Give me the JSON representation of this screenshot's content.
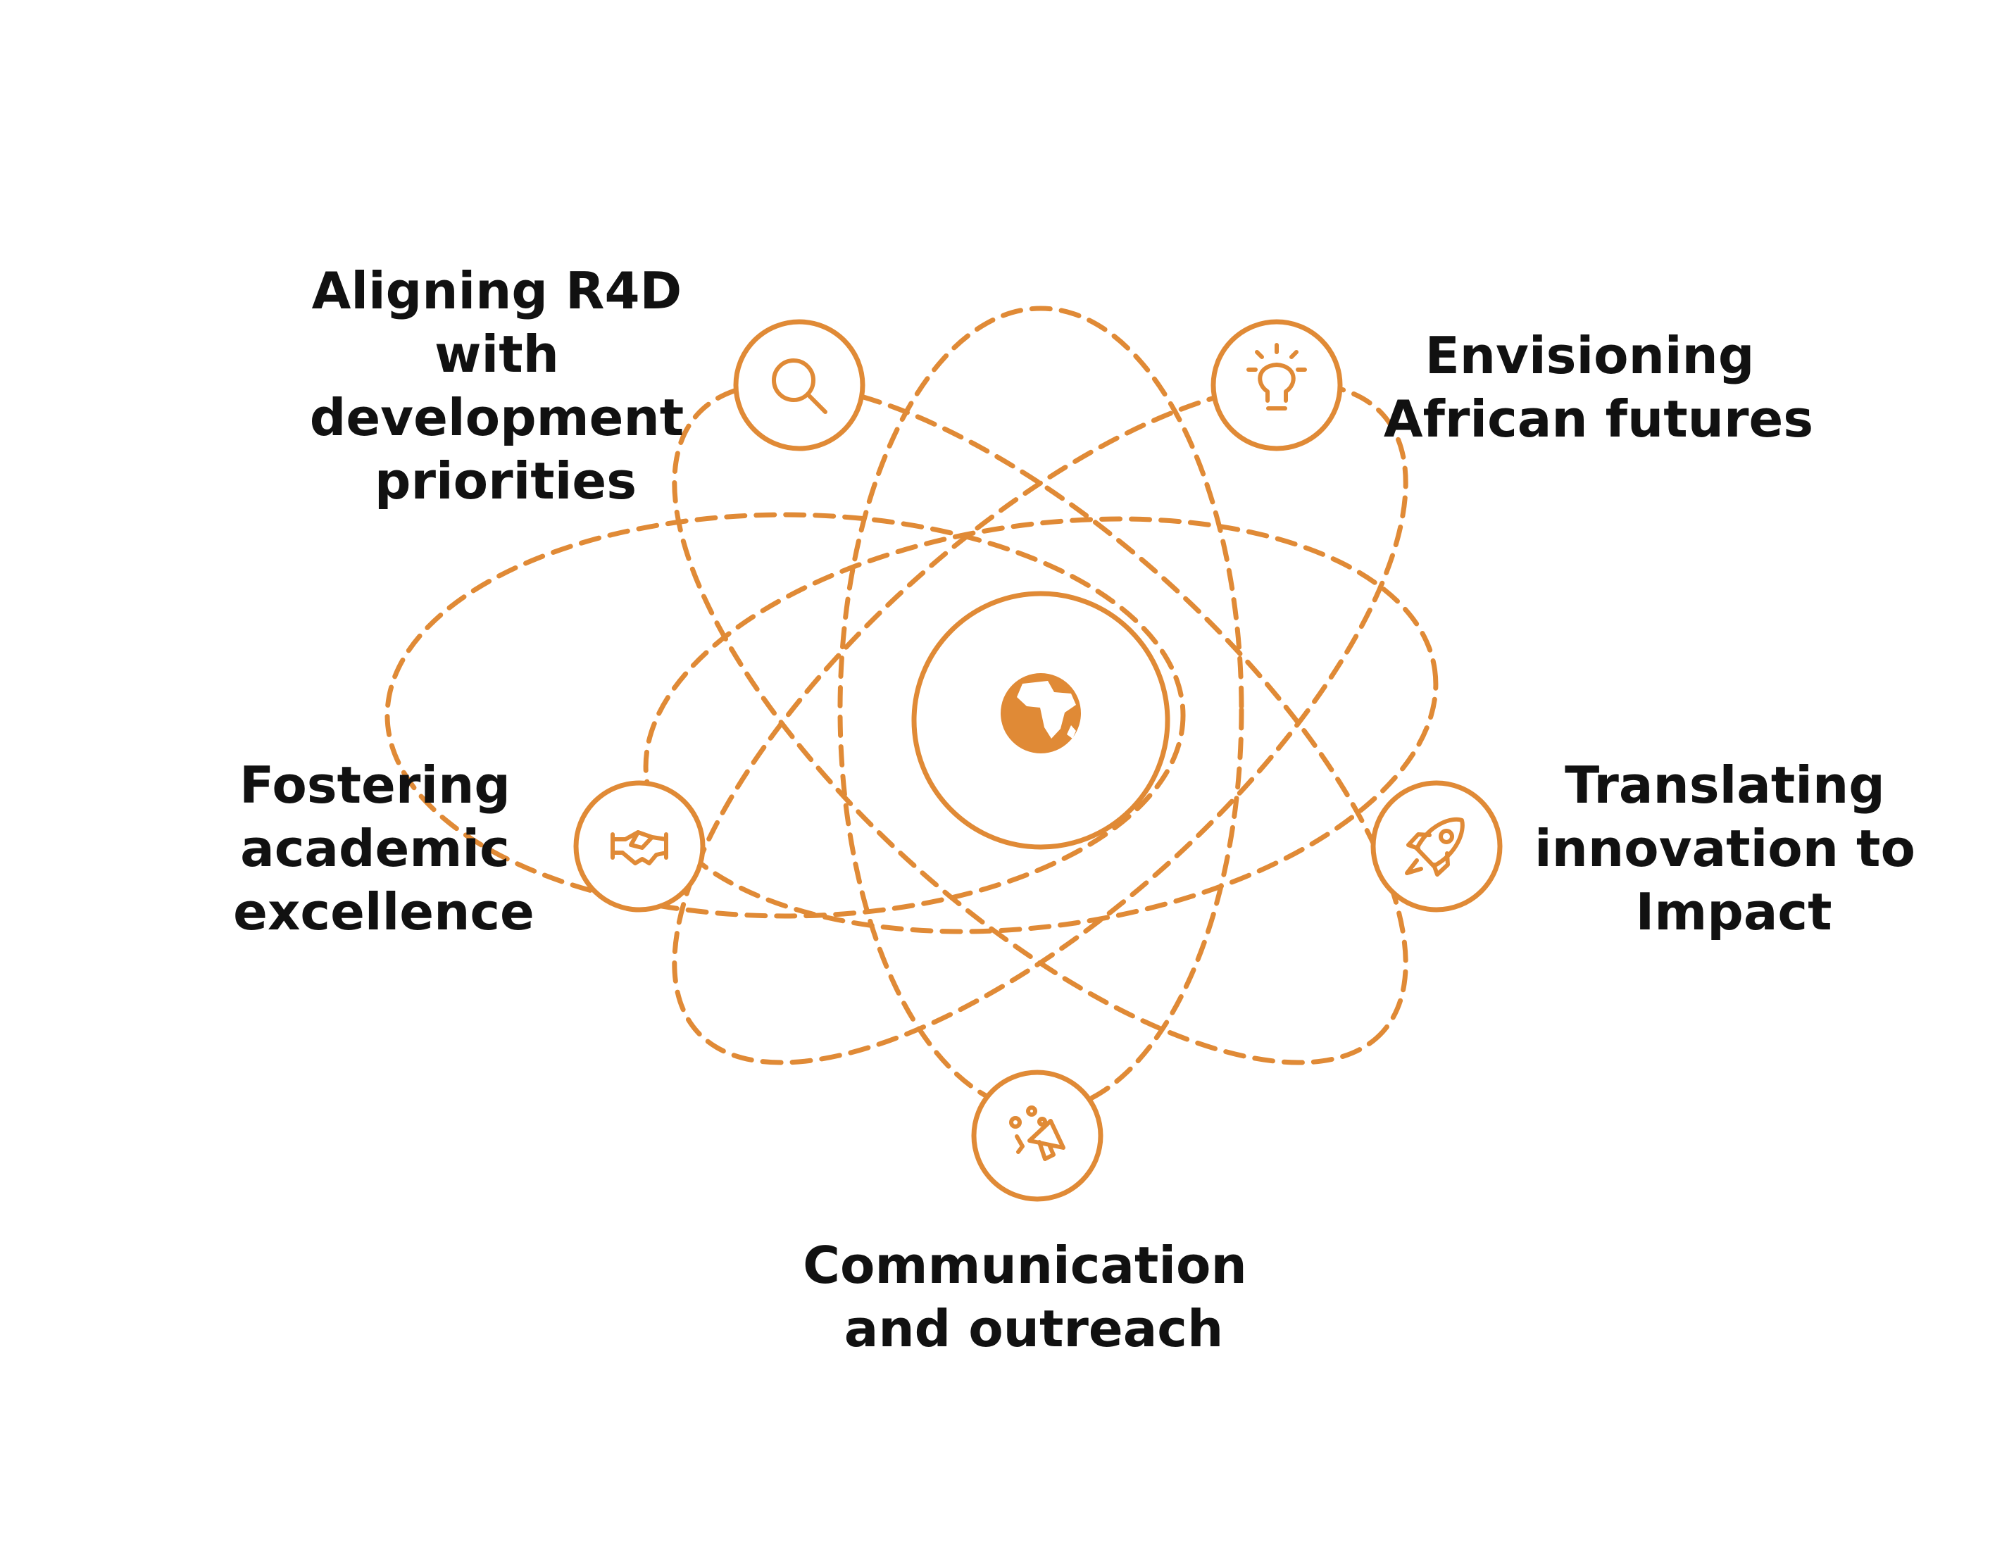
{
  "colors": {
    "accent": "#e08a36",
    "text": "#111111",
    "background": "#ffffff"
  },
  "center": {
    "icon": "africa-globe-icon"
  },
  "nodes": [
    {
      "key": "aligning",
      "icon": "magnifier-icon",
      "label_lines": [
        "Aligning R4D",
        "with",
        "development",
        "priorities"
      ]
    },
    {
      "key": "envisioning",
      "icon": "lightbulb-icon",
      "label_lines": [
        "Envisioning",
        "African futures"
      ]
    },
    {
      "key": "fostering",
      "icon": "handshake-icon",
      "label_lines": [
        "Fostering",
        "academic",
        "excellence"
      ]
    },
    {
      "key": "translating",
      "icon": "rocket-icon",
      "label_lines": [
        "Translating",
        "innovation to",
        "Impact"
      ]
    },
    {
      "key": "communication",
      "icon": "megaphone-icon",
      "label_lines": [
        "Communication",
        "and outreach"
      ]
    }
  ]
}
